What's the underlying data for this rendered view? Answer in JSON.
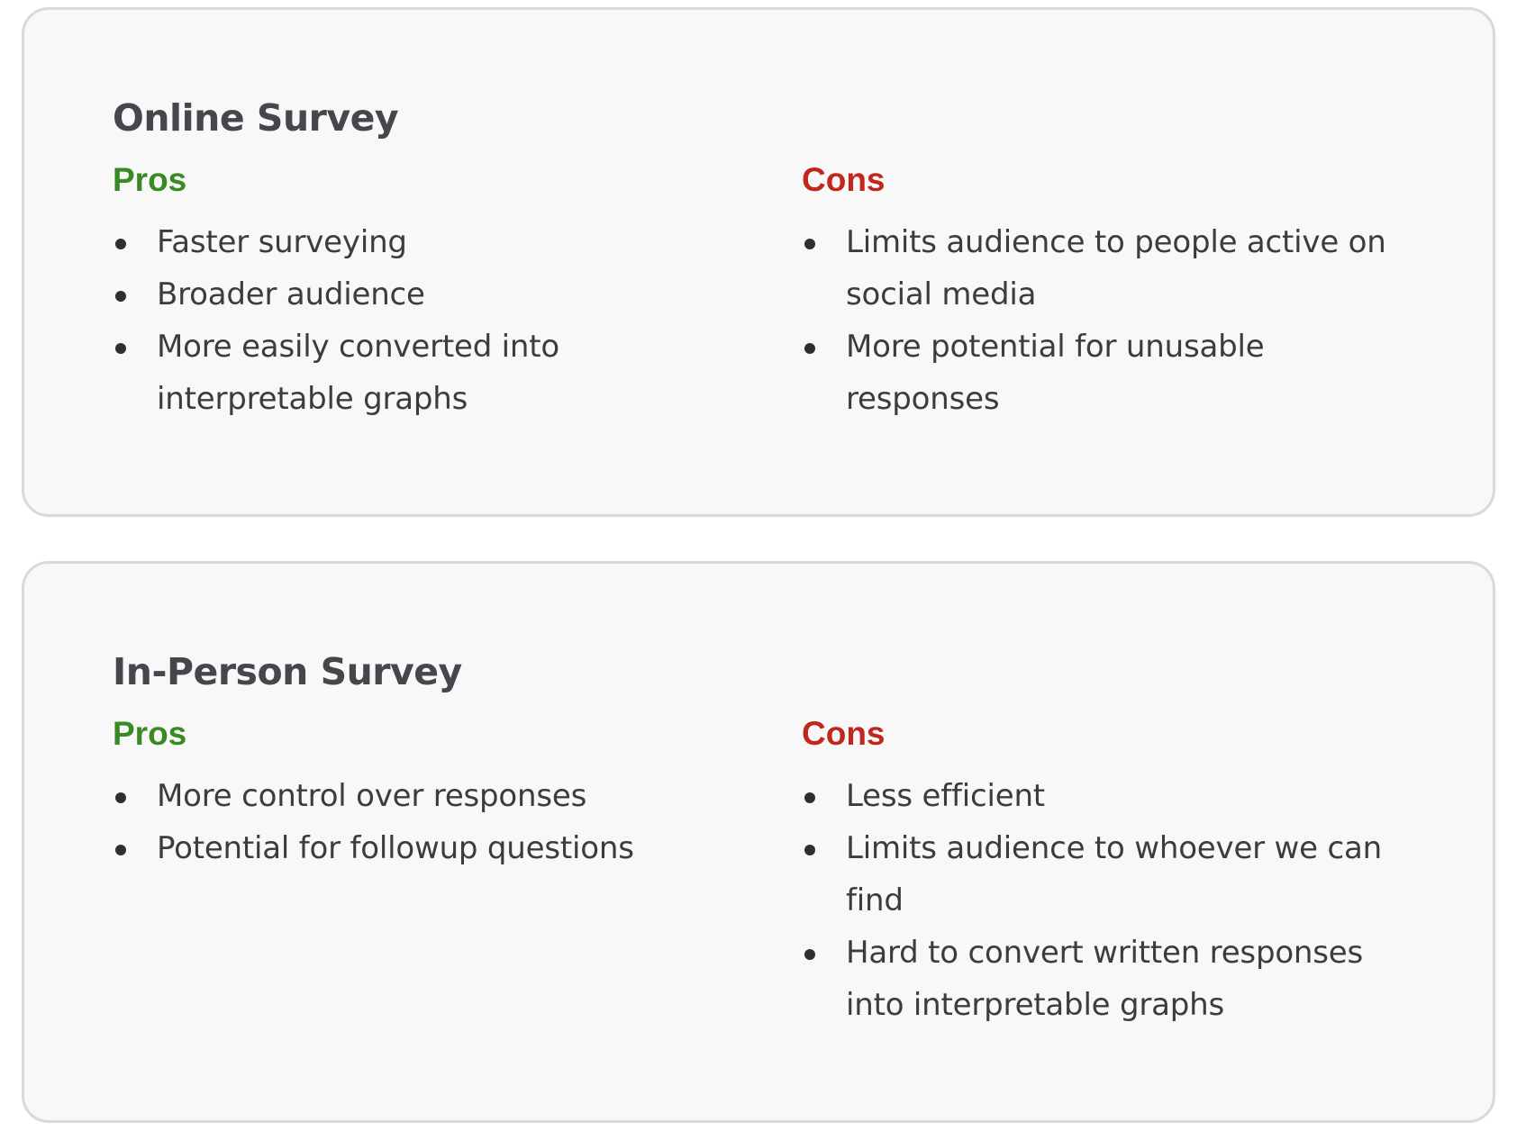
{
  "cards": [
    {
      "title": "Online Survey",
      "pros": {
        "heading": "Pros",
        "items": [
          "Faster surveying",
          "Broader audience",
          "More easily converted into interpretable graphs"
        ]
      },
      "cons": {
        "heading": "Cons",
        "items": [
          "Limits audience to people active on social media",
          "More potential for unusable responses"
        ]
      }
    },
    {
      "title": "In-Person Survey",
      "pros": {
        "heading": "Pros",
        "items": [
          "More control over responses",
          "Potential for followup questions"
        ]
      },
      "cons": {
        "heading": "Cons",
        "items": [
          "Less efficient",
          "Limits audience to whoever we can find",
          "Hard to convert written responses into interpretable graphs"
        ]
      }
    }
  ],
  "colors": {
    "pros": "#3a8a24",
    "cons": "#c1271d",
    "title": "#45474d",
    "body_text": "#3c3c3c",
    "card_background": "#f8f8f8",
    "card_border": "#d9d9d9"
  }
}
